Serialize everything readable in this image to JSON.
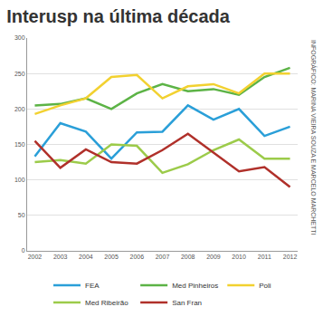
{
  "chart_data": {
    "type": "line",
    "title": "Interusp na última década",
    "annotations": [
      "INFOGRÁFICO: MARINA VIEIRA SOUZA E MARCELO MARCHETTI"
    ],
    "categories": [
      "2002",
      "2003",
      "2004",
      "2005",
      "2006",
      "2007",
      "2008",
      "2009",
      "2010",
      "2011",
      "2012"
    ],
    "series": [
      {
        "name": "FEA",
        "color": "#2a9fd8",
        "values": [
          133,
          180,
          168,
          130,
          167,
          168,
          205,
          185,
          200,
          162,
          175
        ]
      },
      {
        "name": "Med Pinheiros",
        "color": "#5cb346",
        "values": [
          205,
          207,
          215,
          200,
          222,
          235,
          225,
          228,
          220,
          245,
          258
        ]
      },
      {
        "name": "Poli",
        "color": "#f2d130",
        "values": [
          193,
          205,
          215,
          245,
          248,
          215,
          232,
          235,
          222,
          250,
          250
        ]
      },
      {
        "name": "Med Ribeirão",
        "color": "#9ccb4a",
        "values": [
          125,
          128,
          123,
          150,
          148,
          110,
          122,
          142,
          157,
          130,
          130
        ]
      },
      {
        "name": "San Fran",
        "color": "#b0302a",
        "values": [
          155,
          117,
          143,
          125,
          123,
          142,
          165,
          138,
          112,
          118,
          90
        ]
      }
    ],
    "ylim": [
      0,
      300
    ],
    "yticks": [
      0,
      50,
      100,
      150,
      200,
      250,
      300
    ],
    "grid": true,
    "legend": "bottom"
  }
}
